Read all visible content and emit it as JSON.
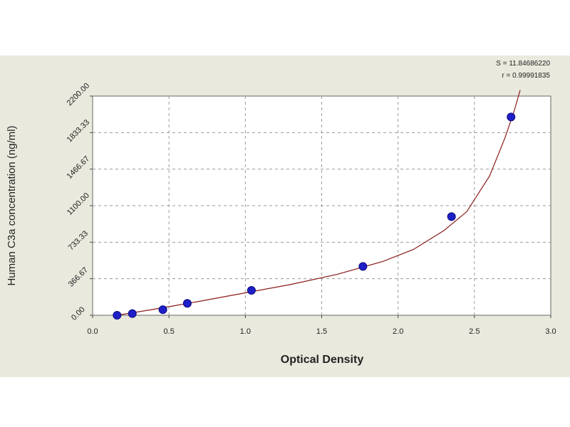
{
  "chart_data": {
    "type": "scatter",
    "title": "",
    "xlabel": "Optical Density",
    "ylabel": "Human C3a concentration (ng/ml)",
    "xlim": [
      0.0,
      3.0
    ],
    "ylim": [
      0.0,
      2200.0
    ],
    "x_ticks": [
      "0.0",
      "0.5",
      "1.0",
      "1.5",
      "2.0",
      "2.5",
      "3.0"
    ],
    "y_ticks": [
      "0.00",
      "366.67",
      "733.33",
      "1100.00",
      "1466.67",
      "1833.33",
      "2200.00"
    ],
    "grid": true,
    "series": [
      {
        "values": [
          {
            "x": 0.16,
            "y": 0
          },
          {
            "x": 0.26,
            "y": 17
          },
          {
            "x": 0.46,
            "y": 56
          },
          {
            "x": 0.62,
            "y": 120
          },
          {
            "x": 1.04,
            "y": 250
          },
          {
            "x": 1.77,
            "y": 490
          },
          {
            "x": 2.35,
            "y": 990
          },
          {
            "x": 2.74,
            "y": 1990
          }
        ],
        "color": "#1f1fc8"
      }
    ],
    "fit_curve": {
      "color": "#8b1a1a",
      "points": [
        {
          "x": 0.16,
          "y": 0
        },
        {
          "x": 0.4,
          "y": 60
        },
        {
          "x": 0.7,
          "y": 140
        },
        {
          "x": 1.0,
          "y": 225
        },
        {
          "x": 1.3,
          "y": 310
        },
        {
          "x": 1.6,
          "y": 410
        },
        {
          "x": 1.9,
          "y": 540
        },
        {
          "x": 2.1,
          "y": 660
        },
        {
          "x": 2.3,
          "y": 850
        },
        {
          "x": 2.45,
          "y": 1040
        },
        {
          "x": 2.6,
          "y": 1400
        },
        {
          "x": 2.7,
          "y": 1780
        },
        {
          "x": 2.76,
          "y": 2050
        },
        {
          "x": 2.8,
          "y": 2260
        }
      ]
    },
    "annotations": [
      "S = 11.84686220",
      "r = 0.99991835"
    ]
  }
}
